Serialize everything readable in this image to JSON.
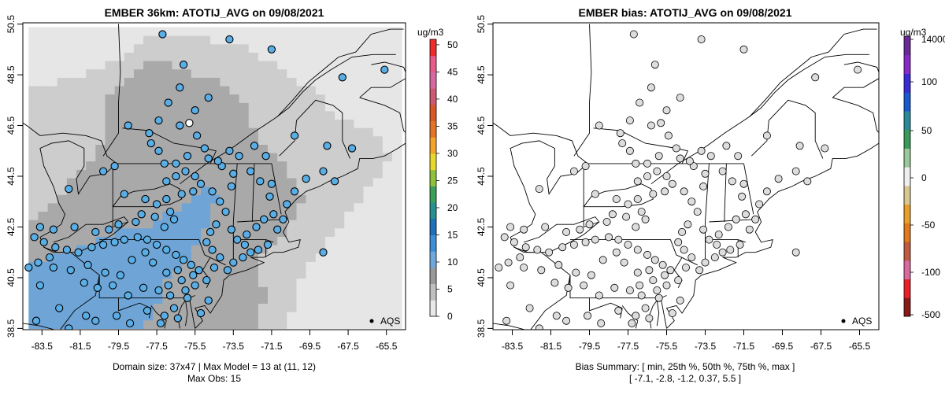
{
  "colors": {
    "grid_light": "#e6e6e6",
    "grid_mid": "#cdcdcd",
    "grid_dark": "#a9a9a9",
    "grid_blue": "#6fa5d6",
    "obs_blue": "#5aaee6",
    "bias_fill": "#dddddd"
  },
  "chart_data": [
    {
      "type": "heatmap",
      "title": "EMBER 36km: ATOTIJ_AVG on 09/08/2021",
      "xlabel": "",
      "ylabel": "",
      "xlim": [
        -84.5,
        -64.5
      ],
      "ylim": [
        38.45,
        50.55
      ],
      "x_ticks": [
        "-83.5",
        "-81.5",
        "-79.5",
        "-77.5",
        "-75.5",
        "-73.5",
        "-71.5",
        "-69.5",
        "-67.5",
        "-65.5"
      ],
      "y_ticks": [
        "38.5",
        "40.5",
        "42.5",
        "44.5",
        "46.5",
        "48.5",
        "50.5"
      ],
      "colorbar": {
        "unit": "ug/m3",
        "ticks": [
          "0",
          "5",
          "10",
          "15",
          "20",
          "25",
          "30",
          "35",
          "40",
          "45",
          "50"
        ],
        "min": 0,
        "max": 51,
        "colors": [
          "#e8e8e8",
          "#c0c0c0",
          "#9a9a9a",
          "#6fa9dc",
          "#3d8ed3",
          "#1e70b8",
          "#2a8f8f",
          "#3aa05a",
          "#8fc23a",
          "#e8d82a",
          "#f2a52a",
          "#e5732a",
          "#d8582a",
          "#cc5a70",
          "#d66aa0",
          "#e85a8a",
          "#ef2a2a"
        ]
      },
      "legend": {
        "label": "AQS",
        "placement": "bottom-right"
      },
      "caption_lines": [
        "Domain size: 37x47 | Max Model = 13 at (11, 12)",
        "Max Obs: 15"
      ],
      "grid_regions": [
        {
          "name": "background",
          "value": 1.5,
          "polygon": [
            [
              -84.2,
              38.5
            ],
            [
              -64.8,
              38.5
            ],
            [
              -64.8,
              50.5
            ],
            [
              -84.2,
              50.5
            ]
          ]
        },
        {
          "name": "light-plume",
          "value": 3,
          "polygon": [
            [
              -84.2,
              38.6
            ],
            [
              -70.6,
              38.6
            ],
            [
              -69.9,
              40.6
            ],
            [
              -68.2,
              42.4
            ],
            [
              -66.8,
              43.6
            ],
            [
              -65.3,
              45.1
            ],
            [
              -65.6,
              46.0
            ],
            [
              -67.8,
              46.7
            ],
            [
              -69.2,
              47.8
            ],
            [
              -71.0,
              48.8
            ],
            [
              -72.6,
              49.5
            ],
            [
              -75.0,
              49.9
            ],
            [
              -78.2,
              49.9
            ],
            [
              -79.8,
              49.0
            ],
            [
              -81.9,
              48.4
            ],
            [
              -84.2,
              48.0
            ]
          ]
        },
        {
          "name": "dark-plume",
          "value": 6,
          "polygon": [
            [
              -84.2,
              38.6
            ],
            [
              -72.3,
              38.6
            ],
            [
              -71.8,
              40.0
            ],
            [
              -72.4,
              41.0
            ],
            [
              -71.3,
              41.9
            ],
            [
              -70.2,
              42.9
            ],
            [
              -69.8,
              43.6
            ],
            [
              -70.8,
              44.8
            ],
            [
              -72.1,
              46.0
            ],
            [
              -72.9,
              47.3
            ],
            [
              -74.2,
              48.2
            ],
            [
              -76.1,
              48.6
            ],
            [
              -77.3,
              49.2
            ],
            [
              -78.6,
              48.7
            ],
            [
              -80.1,
              47.6
            ],
            [
              -80.2,
              46.1
            ],
            [
              -81.5,
              44.6
            ],
            [
              -83.3,
              43.3
            ],
            [
              -84.2,
              42.6
            ]
          ]
        },
        {
          "name": "blue-plume",
          "value": 11,
          "polygon": [
            [
              -84.2,
              38.6
            ],
            [
              -78.3,
              38.6
            ],
            [
              -77.4,
              39.5
            ],
            [
              -76.9,
              40.6
            ],
            [
              -75.8,
              41.4
            ],
            [
              -75.1,
              42.4
            ],
            [
              -74.3,
              43.5
            ],
            [
              -74.9,
              44.2
            ],
            [
              -76.4,
              43.3
            ],
            [
              -77.9,
              42.6
            ],
            [
              -79.6,
              42.3
            ],
            [
              -81.2,
              41.7
            ],
            [
              -82.6,
              41.4
            ],
            [
              -84.2,
              41.1
            ]
          ]
        }
      ],
      "points": [
        [
          -77.2,
          50.1
        ],
        [
          -76.3,
          48.0
        ],
        [
          -75.8,
          46.6
        ],
        [
          -75.5,
          47.1
        ],
        [
          -76.9,
          47.4
        ],
        [
          -76.3,
          46.5
        ],
        [
          -75.4,
          46.1
        ],
        [
          -75.9,
          45.3
        ],
        [
          -76.5,
          45.0
        ],
        [
          -76.0,
          44.7
        ],
        [
          -75.5,
          44.5
        ],
        [
          -75.2,
          44.2
        ],
        [
          -75.6,
          43.9
        ],
        [
          -76.2,
          43.8
        ],
        [
          -76.5,
          44.5
        ],
        [
          -77.0,
          44.3
        ],
        [
          -77.1,
          45.0
        ],
        [
          -77.4,
          45.5
        ],
        [
          -77.9,
          46.2
        ],
        [
          -77.4,
          46.7
        ],
        [
          -77.8,
          45.8
        ],
        [
          -79.0,
          46.5
        ],
        [
          -79.7,
          44.9
        ],
        [
          -80.3,
          44.7
        ],
        [
          -82.1,
          44.0
        ],
        [
          -79.2,
          43.8
        ],
        [
          -78.1,
          43.6
        ],
        [
          -77.5,
          43.4
        ],
        [
          -77.0,
          43.6
        ],
        [
          -76.8,
          43.1
        ],
        [
          -76.6,
          42.8
        ],
        [
          -77.1,
          42.5
        ],
        [
          -77.6,
          42.9
        ],
        [
          -78.3,
          43.0
        ],
        [
          -78.6,
          42.7
        ],
        [
          -79.5,
          42.6
        ],
        [
          -80.0,
          42.4
        ],
        [
          -80.7,
          42.3
        ],
        [
          -81.8,
          42.5
        ],
        [
          -82.9,
          42.4
        ],
        [
          -83.6,
          42.5
        ],
        [
          -83.9,
          42.1
        ],
        [
          -83.4,
          41.9
        ],
        [
          -82.8,
          41.7
        ],
        [
          -82.2,
          41.6
        ],
        [
          -81.6,
          41.5
        ],
        [
          -80.9,
          41.7
        ],
        [
          -80.3,
          41.8
        ],
        [
          -79.7,
          41.9
        ],
        [
          -79.2,
          42.0
        ],
        [
          -78.5,
          42.1
        ],
        [
          -78.0,
          42.0
        ],
        [
          -77.5,
          41.8
        ],
        [
          -77.0,
          41.6
        ],
        [
          -76.5,
          41.4
        ],
        [
          -76.1,
          41.2
        ],
        [
          -75.7,
          41.0
        ],
        [
          -75.3,
          40.8
        ],
        [
          -75.6,
          40.6
        ],
        [
          -76.2,
          40.4
        ],
        [
          -76.9,
          40.2
        ],
        [
          -77.4,
          40.0
        ],
        [
          -78.2,
          40.1
        ],
        [
          -79.0,
          39.8
        ],
        [
          -79.8,
          40.2
        ],
        [
          -80.6,
          40.1
        ],
        [
          -81.3,
          40.3
        ],
        [
          -82.0,
          40.8
        ],
        [
          -82.9,
          40.9
        ],
        [
          -83.7,
          41.1
        ],
        [
          -84.2,
          40.9
        ],
        [
          -83.1,
          41.3
        ],
        [
          -81.1,
          41.0
        ],
        [
          -80.2,
          40.7
        ],
        [
          -79.4,
          40.6
        ],
        [
          -78.8,
          41.2
        ],
        [
          -78.1,
          41.5
        ],
        [
          -77.7,
          41.1
        ],
        [
          -77.0,
          40.7
        ],
        [
          -76.4,
          40.8
        ],
        [
          -75.9,
          39.7
        ],
        [
          -76.6,
          39.3
        ],
        [
          -77.1,
          39.0
        ],
        [
          -76.8,
          39.8
        ],
        [
          -78.0,
          39.2
        ],
        [
          -79.6,
          39.0
        ],
        [
          -81.2,
          39.0
        ],
        [
          -82.6,
          39.3
        ],
        [
          -83.8,
          38.8
        ],
        [
          -82.1,
          38.5
        ],
        [
          -80.7,
          38.8
        ],
        [
          -78.9,
          38.7
        ],
        [
          -77.3,
          38.7
        ],
        [
          -76.0,
          40.0
        ],
        [
          -75.5,
          40.2
        ],
        [
          -74.9,
          40.4
        ],
        [
          -74.5,
          40.9
        ],
        [
          -74.2,
          41.3
        ],
        [
          -74.6,
          41.6
        ],
        [
          -74.9,
          41.9
        ],
        [
          -74.7,
          42.3
        ],
        [
          -74.4,
          42.6
        ],
        [
          -73.9,
          43.1
        ],
        [
          -74.2,
          43.5
        ],
        [
          -74.6,
          43.9
        ],
        [
          -73.6,
          44.1
        ],
        [
          -73.5,
          44.6
        ],
        [
          -74.1,
          44.9
        ],
        [
          -74.8,
          45.2
        ],
        [
          -73.2,
          45.3
        ],
        [
          -73.7,
          45.5
        ],
        [
          -75.0,
          45.6
        ],
        [
          -74.3,
          45.1
        ],
        [
          -73.8,
          40.8
        ],
        [
          -73.5,
          41.1
        ],
        [
          -73.0,
          41.3
        ],
        [
          -72.6,
          41.5
        ],
        [
          -72.2,
          41.6
        ],
        [
          -71.7,
          41.8
        ],
        [
          -72.9,
          41.8
        ],
        [
          -73.3,
          42.0
        ],
        [
          -73.6,
          42.4
        ],
        [
          -72.8,
          42.2
        ],
        [
          -72.3,
          42.5
        ],
        [
          -71.9,
          42.8
        ],
        [
          -71.4,
          43.0
        ],
        [
          -71.2,
          42.4
        ],
        [
          -70.9,
          42.8
        ],
        [
          -71.6,
          43.7
        ],
        [
          -72.1,
          44.3
        ],
        [
          -72.6,
          44.7
        ],
        [
          -71.5,
          44.2
        ],
        [
          -70.7,
          43.4
        ],
        [
          -70.3,
          43.9
        ],
        [
          -69.7,
          44.4
        ],
        [
          -68.8,
          44.7
        ],
        [
          -68.2,
          44.3
        ],
        [
          -67.3,
          45.6
        ],
        [
          -68.6,
          45.7
        ],
        [
          -70.3,
          46.1
        ],
        [
          -72.4,
          45.7
        ],
        [
          -71.8,
          45.3
        ],
        [
          -74.8,
          47.6
        ],
        [
          -76.1,
          48.9
        ],
        [
          -67.8,
          48.4
        ],
        [
          -65.6,
          48.7
        ],
        [
          -71.5,
          49.5
        ],
        [
          -73.7,
          49.9
        ],
        [
          -68.8,
          41.5
        ],
        [
          -83.6,
          40.2
        ],
        [
          -75.2,
          39.1
        ],
        [
          -74.8,
          39.6
        ],
        [
          -76.4,
          38.9
        ]
      ]
    },
    {
      "type": "heatmap",
      "title": "EMBER bias: ATOTIJ_AVG on 09/08/2021",
      "xlabel": "",
      "ylabel": "",
      "xlim": [
        -84.5,
        -64.5
      ],
      "ylim": [
        38.45,
        50.55
      ],
      "x_ticks": [
        "-83.5",
        "-81.5",
        "-79.5",
        "-77.5",
        "-75.5",
        "-73.5",
        "-71.5",
        "-69.5",
        "-67.5",
        "-65.5"
      ],
      "y_ticks": [
        "38.5",
        "40.5",
        "42.5",
        "44.5",
        "46.5",
        "48.5",
        "50.5"
      ],
      "colorbar": {
        "unit": "ug/m3",
        "ticks": [
          "14000",
          "100",
          "50",
          "0",
          "-50",
          "-100",
          "-500"
        ],
        "colors": [
          "#8a1a1a",
          "#e8202a",
          "#d86aa0",
          "#c05a40",
          "#e07a1a",
          "#e8a02a",
          "#d8c890",
          "#eeeeee",
          "#9ac89a",
          "#3a9a5a",
          "#2a8a9a",
          "#1a5ad0",
          "#3a2ad8",
          "#8a2ac8",
          "#6a2a9a"
        ]
      },
      "legend": {
        "label": "AQS",
        "placement": "bottom-right"
      },
      "caption_lines": [
        "Bias Summary: [ min, 25th %, 50th %, 75th %, max ]",
        "[ -7.1,   -2.8,   -1.2,   0.37,   5.5 ]"
      ],
      "bias_summary": {
        "min": -7.1,
        "p25": -2.8,
        "p50": -1.2,
        "p75": 0.37,
        "max": 5.5
      }
    }
  ]
}
